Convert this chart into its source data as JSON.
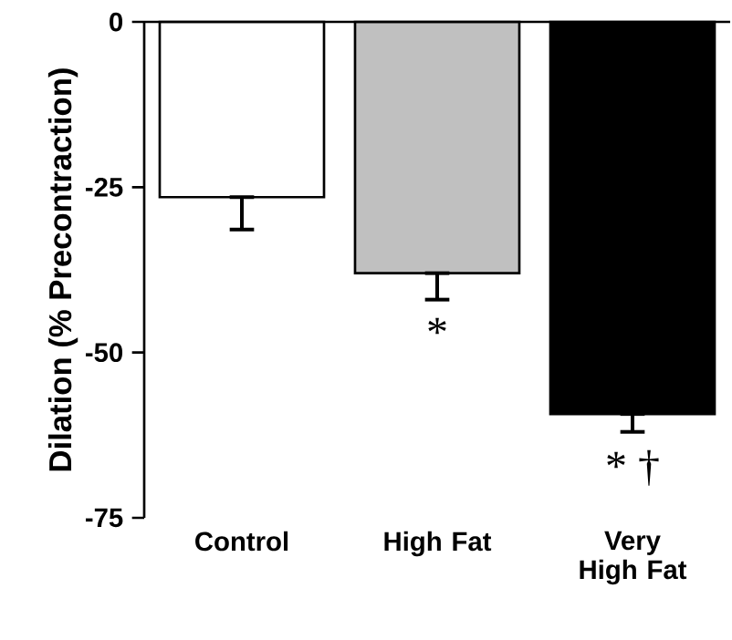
{
  "chart_data": {
    "type": "bar",
    "ylabel": "Dilation (% Precontraction)",
    "categories": [
      "Control",
      "High Fat",
      "Very High Fat"
    ],
    "values": [
      -26.5,
      -38,
      -59.3
    ],
    "colors": [
      "#ffffff",
      "#c0c0c0",
      "#000000"
    ],
    "errors": [
      [
        -31.4,
        -26.5
      ],
      [
        -42,
        -38
      ],
      [
        -62,
        -59.3
      ]
    ],
    "ylim": [
      -75,
      0
    ],
    "yticks": [
      -75,
      -50,
      -25,
      0
    ],
    "annotations": [
      "*",
      "* †"
    ]
  }
}
